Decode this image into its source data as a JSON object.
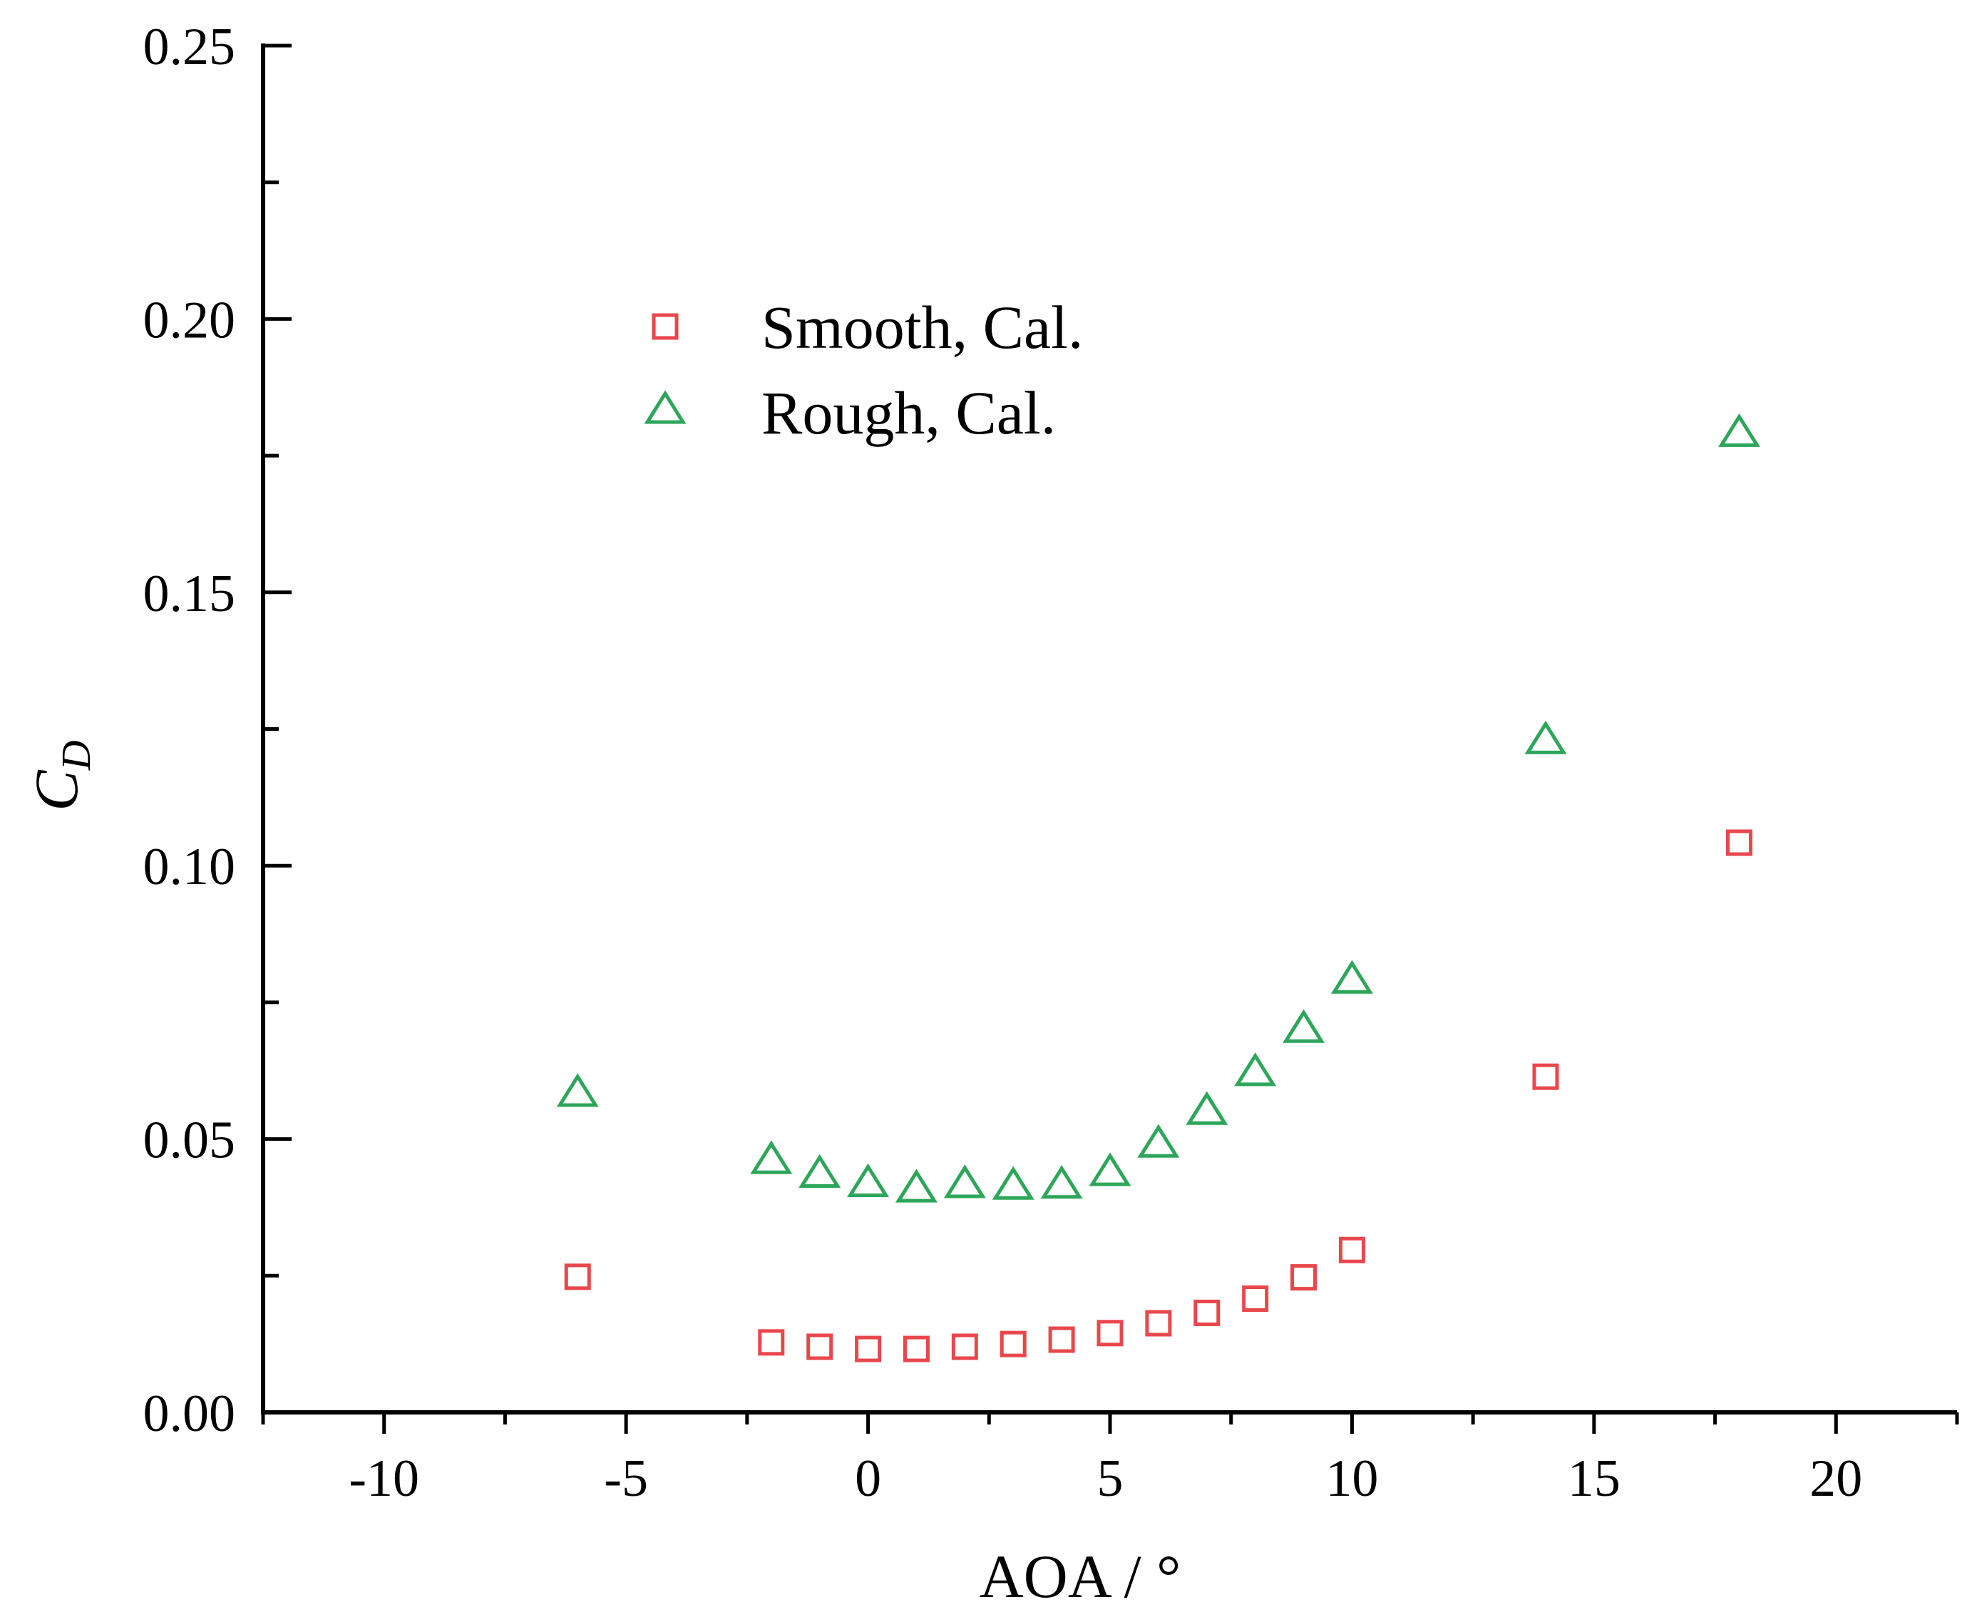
{
  "chart_data": {
    "type": "scatter",
    "title": "",
    "xlabel": "AOA / °",
    "ylabel": {
      "main": "C",
      "subscript": "D"
    },
    "xlim": [
      -12.5,
      22.5
    ],
    "ylim": [
      0,
      0.25
    ],
    "xticks": [
      -10,
      -5,
      0,
      5,
      10,
      15,
      20
    ],
    "xtick_labels": [
      "-10",
      "-5",
      "0",
      "5",
      "10",
      "15",
      "20"
    ],
    "xminor": [
      -12.5,
      -7.5,
      -2.5,
      2.5,
      7.5,
      12.5,
      17.5,
      22.5
    ],
    "yticks": [
      0,
      0.05,
      0.1,
      0.15,
      0.2,
      0.25
    ],
    "ytick_labels": [
      "0.00",
      "0.05",
      "0.10",
      "0.15",
      "0.20",
      "0.25"
    ],
    "yminor": [
      0.025,
      0.075,
      0.125,
      0.175,
      0.225
    ],
    "grid": false,
    "legend_position": "upper-left",
    "series": [
      {
        "name": "Smooth, Cal.",
        "marker": "square",
        "color": "#e8474c",
        "x": [
          -6,
          -2,
          -1,
          0,
          1,
          2,
          3,
          4,
          5,
          6,
          7,
          8,
          9,
          10,
          14,
          18
        ],
        "y": [
          0.0248,
          0.0128,
          0.012,
          0.0116,
          0.0116,
          0.012,
          0.0125,
          0.0133,
          0.0145,
          0.0163,
          0.0182,
          0.0208,
          0.0247,
          0.0297,
          0.0614,
          0.1042
        ]
      },
      {
        "name": "Rough, Cal.",
        "marker": "triangle",
        "color": "#2ea65a",
        "x": [
          -6,
          -2,
          -1,
          0,
          1,
          2,
          3,
          4,
          5,
          6,
          7,
          8,
          9,
          10,
          14,
          18
        ],
        "y": [
          0.0583,
          0.046,
          0.0435,
          0.0418,
          0.0408,
          0.0416,
          0.0413,
          0.0415,
          0.0438,
          0.049,
          0.055,
          0.0621,
          0.07,
          0.079,
          0.1228,
          0.179
        ]
      }
    ]
  }
}
